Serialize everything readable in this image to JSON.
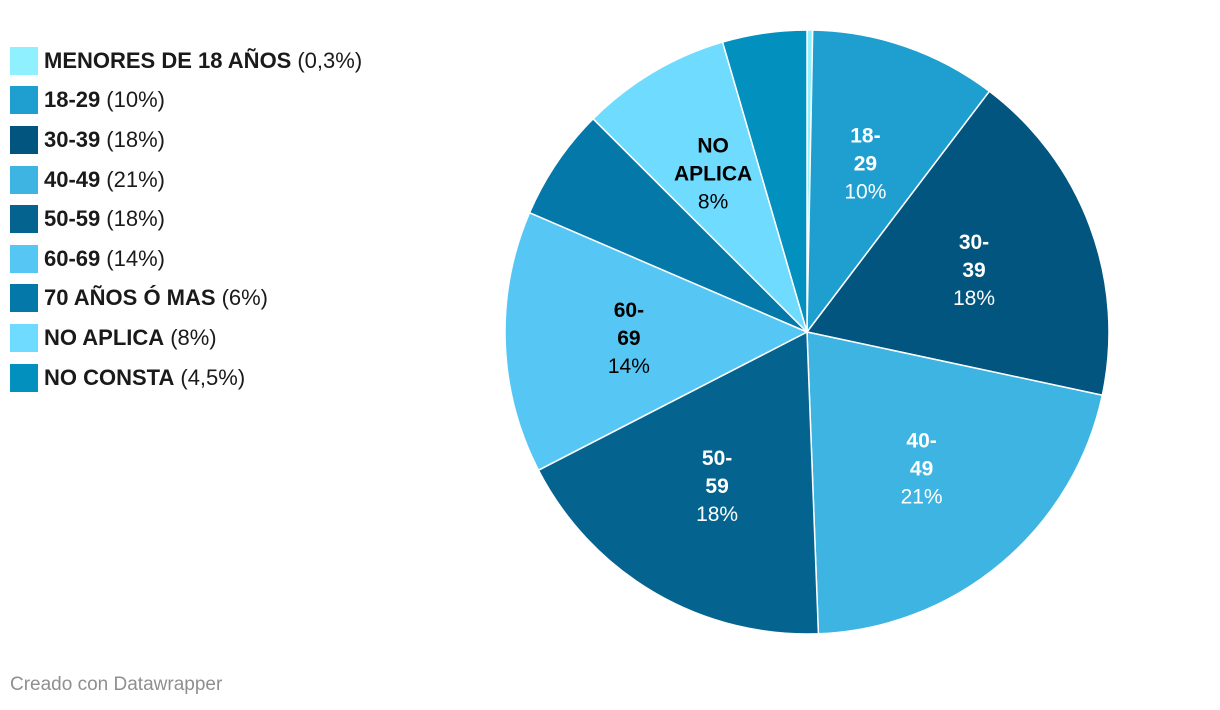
{
  "chart_data": {
    "type": "pie",
    "title": "",
    "categories": [
      "MENORES DE 18 AÑOS",
      "18-29",
      "30-39",
      "40-49",
      "50-59",
      "60-69",
      "70 AÑOS Ó MAS",
      "NO APLICA",
      "NO CONSTA"
    ],
    "values": [
      0.3,
      10,
      18,
      21,
      18,
      14,
      6,
      8,
      4.5
    ],
    "value_labels": [
      "0,3%",
      "10%",
      "18%",
      "21%",
      "18%",
      "14%",
      "6%",
      "8%",
      "4,5%"
    ],
    "colors": [
      "#8ff0ff",
      "#1f9fd0",
      "#02557e",
      "#3db4e2",
      "#04648f",
      "#56c7f4",
      "#0478a8",
      "#6fdcff",
      "#0291bf"
    ],
    "slice_label_lines": [
      [],
      [
        "18-",
        "29"
      ],
      [
        "30-",
        "39"
      ],
      [
        "40-",
        "49"
      ],
      [
        "50-",
        "59"
      ],
      [
        "60-",
        "69"
      ],
      [],
      [
        "NO",
        "APLICA"
      ],
      []
    ],
    "slice_label_text_colors": [
      "#000000",
      "#ffffff",
      "#ffffff",
      "#ffffff",
      "#ffffff",
      "#000000",
      "#ffffff",
      "#000000",
      "#ffffff"
    ],
    "legend_position": "top-left",
    "start_angle": "12 o'clock",
    "direction": "clockwise"
  },
  "footer": {
    "credit": "Creado con Datawrapper"
  }
}
